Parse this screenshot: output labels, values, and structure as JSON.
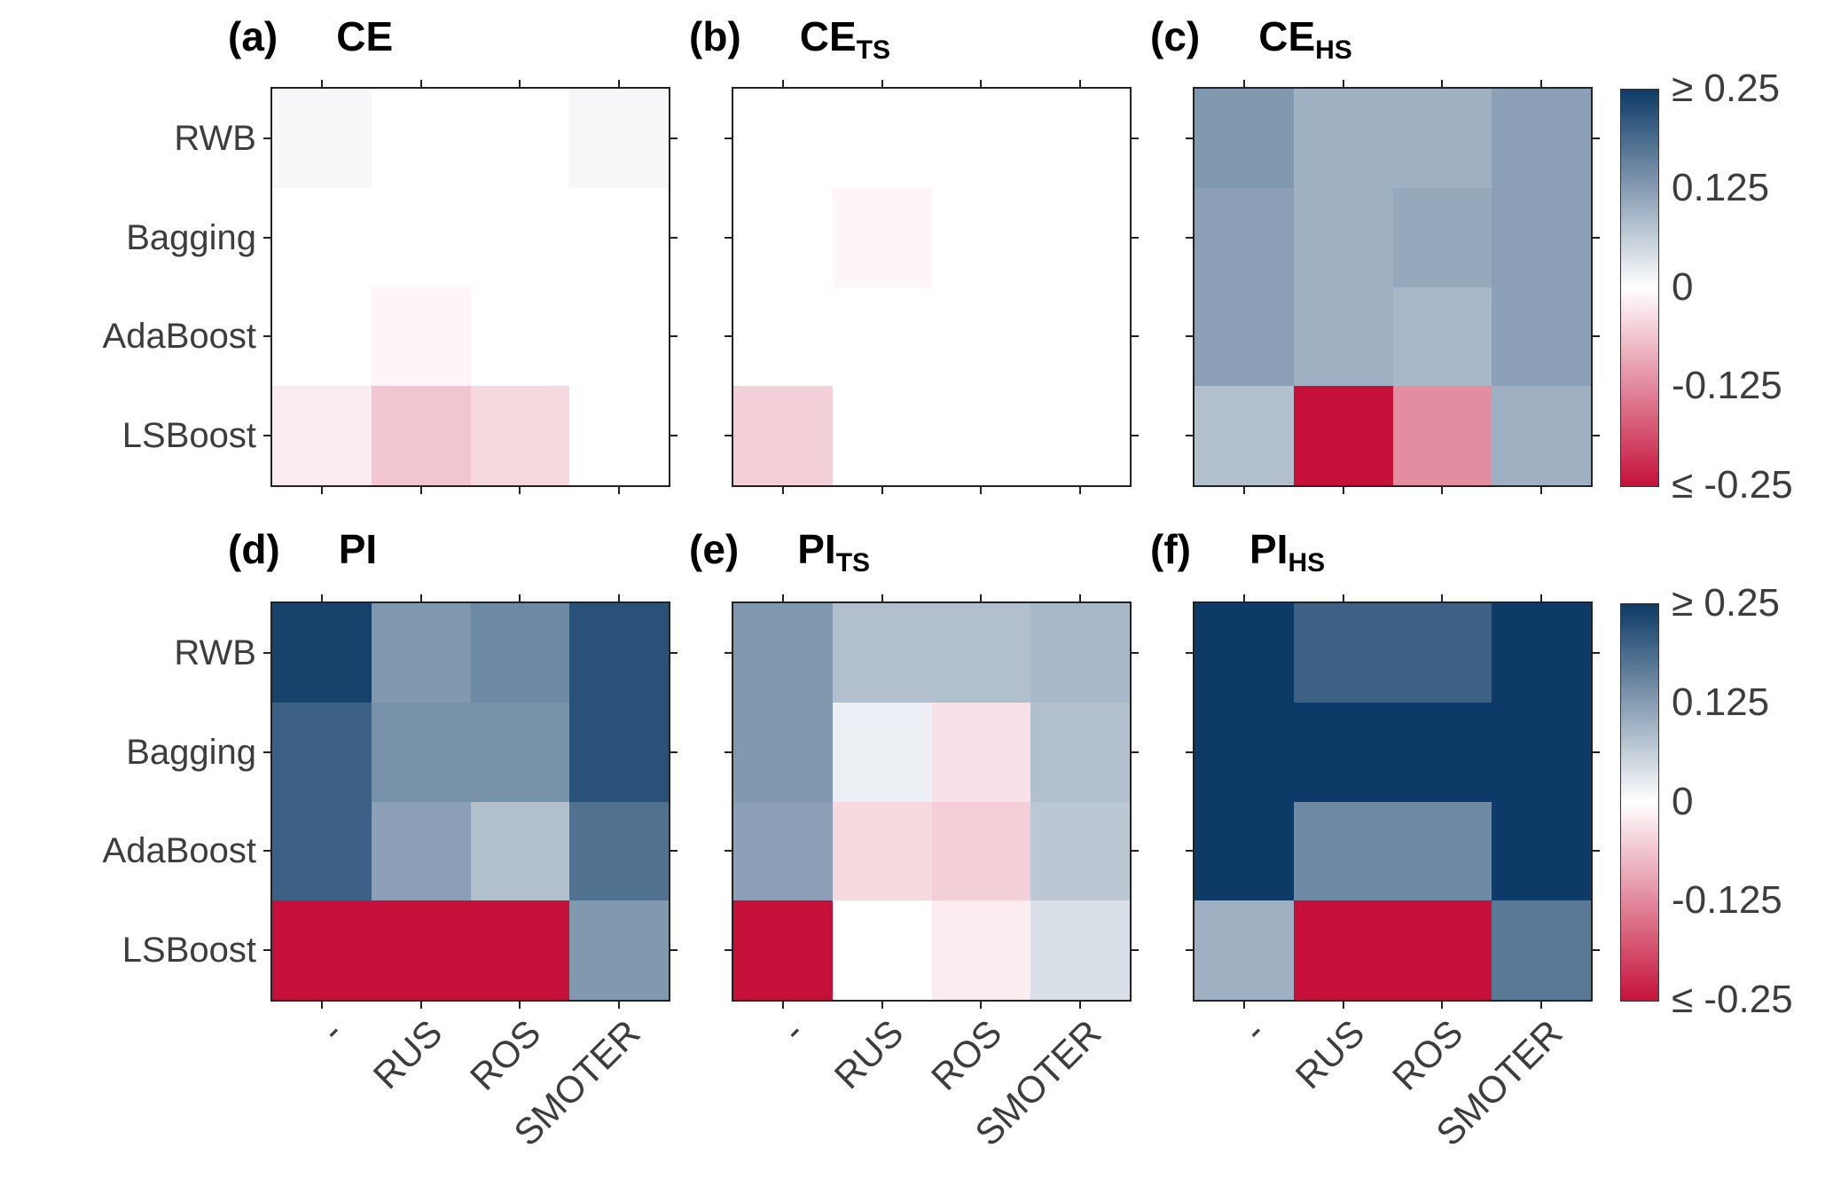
{
  "chart_data": {
    "type": "heatmap",
    "rows": [
      "RWB",
      "Bagging",
      "AdaBoost",
      "LSBoost"
    ],
    "cols": [
      "-",
      "RUS",
      "ROS",
      "SMOTER"
    ],
    "value_range": [
      -0.25,
      0.25
    ],
    "colorbar_ticks": [
      "≥ 0.25",
      "0.125",
      "0",
      "-0.125",
      "≤ -0.25"
    ],
    "colors": {
      "positive_max": "#0d3a66",
      "zero": "#ffffff",
      "negative_max": "#c5113a",
      "axis": "#222222",
      "label_text": "#3d3d3d"
    },
    "layout": {
      "grid": "2 rows x 3 columns of 4x4 heatmaps",
      "colorbar_position": "right of each row of panels",
      "x_tick_rotation_deg": 45
    },
    "panels": [
      {
        "tag": "(a)",
        "name": "CE",
        "subscript": "",
        "values": [
          [
            0.01,
            0.0,
            0.0,
            0.01
          ],
          [
            0.0,
            0.0,
            0.0,
            0.0
          ],
          [
            0.0,
            -0.01,
            0.0,
            0.0
          ],
          [
            -0.02,
            -0.06,
            -0.04,
            0.0
          ]
        ]
      },
      {
        "tag": "(b)",
        "name": "CE",
        "subscript": "TS",
        "values": [
          [
            0.0,
            0.0,
            0.0,
            0.0
          ],
          [
            0.0,
            -0.01,
            0.0,
            0.0
          ],
          [
            0.0,
            0.0,
            0.0,
            0.0
          ],
          [
            -0.05,
            0.0,
            0.0,
            0.0
          ]
        ]
      },
      {
        "tag": "(c)",
        "name": "CE",
        "subscript": "HS",
        "values": [
          [
            0.13,
            0.1,
            0.1,
            0.12
          ],
          [
            0.12,
            0.1,
            0.11,
            0.12
          ],
          [
            0.12,
            0.1,
            0.09,
            0.12
          ],
          [
            0.08,
            -0.28,
            -0.12,
            0.1
          ]
        ]
      },
      {
        "tag": "(d)",
        "name": "PI",
        "subscript": "",
        "values": [
          [
            0.24,
            0.13,
            0.15,
            0.22
          ],
          [
            0.2,
            0.14,
            0.14,
            0.22
          ],
          [
            0.2,
            0.12,
            0.08,
            0.18
          ],
          [
            -0.3,
            -0.3,
            -0.3,
            0.13
          ]
        ]
      },
      {
        "tag": "(e)",
        "name": "PI",
        "subscript": "TS",
        "values": [
          [
            0.13,
            0.08,
            0.08,
            0.09
          ],
          [
            0.13,
            0.02,
            -0.03,
            0.08
          ],
          [
            0.12,
            -0.04,
            -0.05,
            0.07
          ],
          [
            -0.3,
            0.0,
            -0.02,
            0.04
          ]
        ]
      },
      {
        "tag": "(f)",
        "name": "PI",
        "subscript": "HS",
        "values": [
          [
            0.26,
            0.2,
            0.2,
            0.26
          ],
          [
            0.26,
            0.26,
            0.26,
            0.26
          ],
          [
            0.26,
            0.15,
            0.15,
            0.26
          ],
          [
            0.1,
            -0.3,
            -0.3,
            0.17
          ]
        ]
      }
    ]
  }
}
